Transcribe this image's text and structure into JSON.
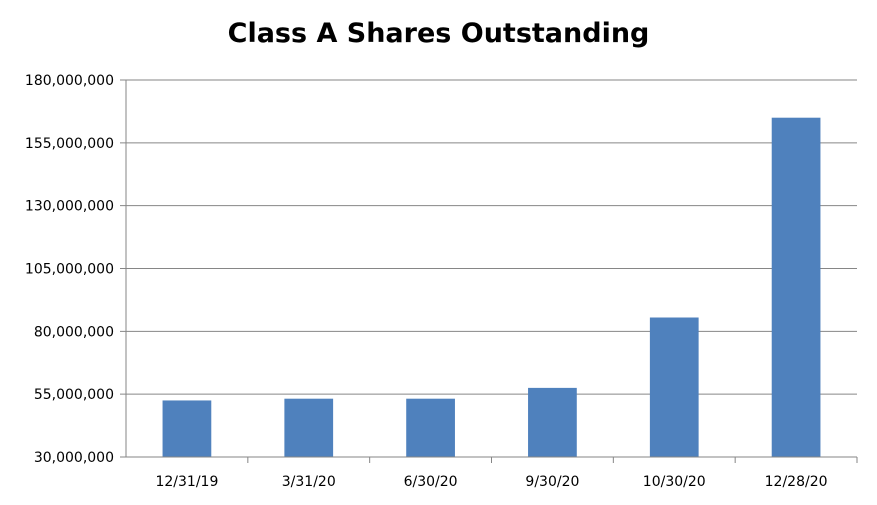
{
  "chart_data": {
    "type": "bar",
    "title": "Class A Shares Outstanding",
    "xlabel": "",
    "ylabel": "",
    "categories": [
      "12/31/19",
      "3/31/20",
      "6/30/20",
      "9/30/20",
      "10/30/20",
      "12/28/20"
    ],
    "values": [
      52500000,
      53200000,
      53200000,
      57500000,
      85500000,
      165000000
    ],
    "ylim": [
      30000000,
      180000000
    ],
    "yticks": [
      30000000,
      55000000,
      80000000,
      105000000,
      130000000,
      155000000,
      180000000
    ],
    "ytick_labels": [
      "30,000,000",
      "55,000,000",
      "80,000,000",
      "105,000,000",
      "130,000,000",
      "155,000,000",
      "180,000,000"
    ],
    "grid": true,
    "legend": "none",
    "bar_color": "#4f81bd"
  }
}
